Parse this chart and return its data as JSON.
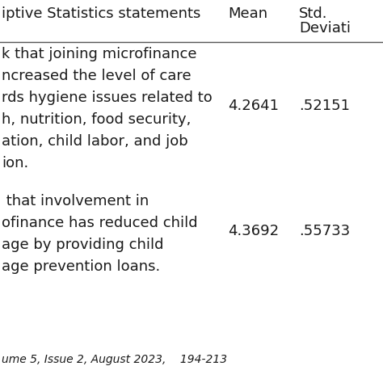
{
  "header_col1": "iptive Statistics statements",
  "header_col2": "Mean",
  "header_col3_line1": "Std.",
  "header_col3_line2": "Deviati",
  "row1_lines": [
    "k that joining microfinance",
    "ncreased the level of care",
    "rds hygiene issues related to",
    "h, nutrition, food security,",
    "ation, child labor, and job",
    "ion."
  ],
  "row1_mean": "4.2641",
  "row1_std": ".52151",
  "row2_lines": [
    " that involvement in",
    "ofinance has reduced child",
    "age by providing child",
    "age prevention loans."
  ],
  "row2_mean": "4.3692",
  "row2_std": ".55733",
  "footer": "ume 5, Issue 2, August 2023,    194-213",
  "bg_color": "#ffffff",
  "text_color": "#1a1a1a",
  "line_color": "#555555",
  "font_size_header": 13,
  "font_size_body": 13,
  "font_size_footer": 10
}
